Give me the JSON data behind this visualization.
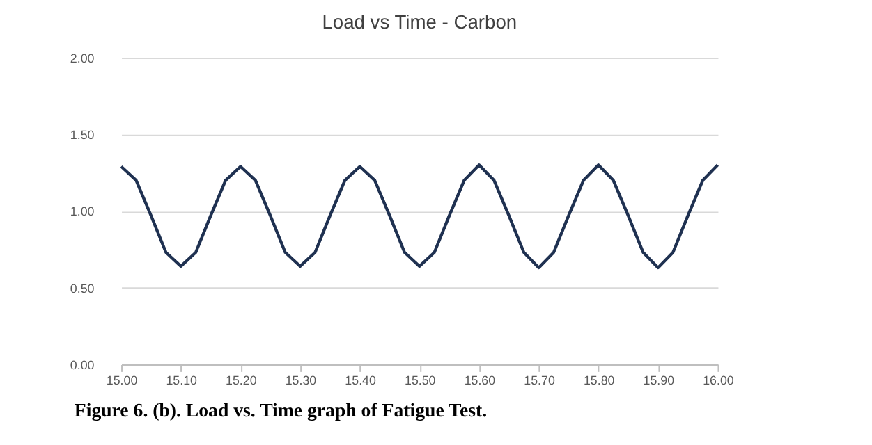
{
  "chart_data": {
    "type": "line",
    "title": "Load vs Time - Carbon",
    "annotations": [
      "Figure 6. (b). Load vs. Time graph of Fatigue Test."
    ],
    "x": [
      15.0,
      15.025,
      15.05,
      15.075,
      15.1,
      15.125,
      15.15,
      15.175,
      15.2,
      15.225,
      15.25,
      15.275,
      15.3,
      15.325,
      15.35,
      15.375,
      15.4,
      15.425,
      15.45,
      15.475,
      15.5,
      15.525,
      15.55,
      15.575,
      15.6,
      15.625,
      15.65,
      15.675,
      15.7,
      15.725,
      15.75,
      15.775,
      15.8,
      15.825,
      15.85,
      15.875,
      15.9,
      15.925,
      15.95,
      15.975,
      16.0
    ],
    "series": [
      {
        "color": "#1f3151",
        "values": [
          1.29,
          1.2,
          0.97,
          0.73,
          0.64,
          0.73,
          0.97,
          1.2,
          1.29,
          1.2,
          0.97,
          0.73,
          0.64,
          0.73,
          0.97,
          1.2,
          1.29,
          1.2,
          0.97,
          0.73,
          0.64,
          0.73,
          0.97,
          1.2,
          1.3,
          1.2,
          0.97,
          0.73,
          0.63,
          0.73,
          0.97,
          1.2,
          1.3,
          1.2,
          0.97,
          0.73,
          0.63,
          0.73,
          0.97,
          1.2,
          1.3
        ]
      }
    ],
    "xlim": [
      15.0,
      16.0
    ],
    "xticks": [
      {
        "value": 15.0,
        "label": "15.00"
      },
      {
        "value": 15.1,
        "label": "15.10"
      },
      {
        "value": 15.2,
        "label": "15.20"
      },
      {
        "value": 15.3,
        "label": "15.30"
      },
      {
        "value": 15.4,
        "label": "15.40"
      },
      {
        "value": 15.5,
        "label": "15.50"
      },
      {
        "value": 15.6,
        "label": "15.60"
      },
      {
        "value": 15.7,
        "label": "15.70"
      },
      {
        "value": 15.8,
        "label": "15.80"
      },
      {
        "value": 15.9,
        "label": "15.90"
      },
      {
        "value": 16.0,
        "label": "16.00"
      }
    ],
    "ylim": [
      0,
      2
    ],
    "yticks": [
      {
        "value": 0,
        "label": "0.00"
      },
      {
        "value": 0.5,
        "label": "0.50"
      },
      {
        "value": 1,
        "label": "1.00"
      },
      {
        "value": 1.5,
        "label": "1.50"
      },
      {
        "value": 2,
        "label": "2.00"
      }
    ],
    "grid": "y",
    "marker": "none",
    "line_style": "solid",
    "legend": false
  }
}
